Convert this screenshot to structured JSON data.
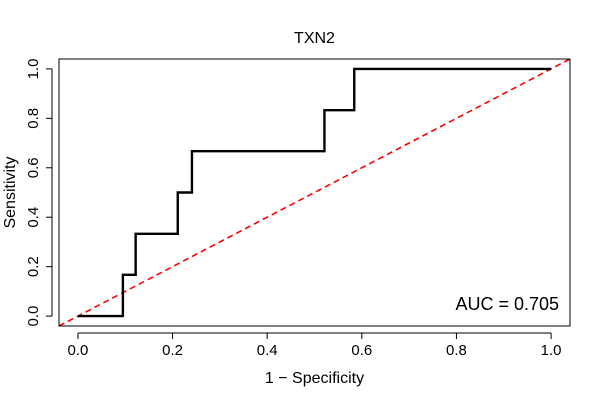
{
  "chart_data": {
    "type": "line",
    "title": "TXN2",
    "xlabel": "1 − Specificity",
    "ylabel": "Sensitivity",
    "xlim": [
      -0.04,
      1.04
    ],
    "ylim": [
      -0.04,
      1.04
    ],
    "x_ticks": [
      0.0,
      0.2,
      0.4,
      0.6,
      0.8,
      1.0
    ],
    "x_tick_labels": [
      "0.0",
      "0.2",
      "0.4",
      "0.6",
      "0.8",
      "1.0"
    ],
    "y_ticks": [
      0.0,
      0.2,
      0.4,
      0.6,
      0.8,
      1.0
    ],
    "y_tick_labels": [
      "0.0",
      "0.2",
      "0.4",
      "0.6",
      "0.8",
      "1.0"
    ],
    "grid": false,
    "annotation": "AUC = 0.705",
    "series": [
      {
        "color": "#000000",
        "style": "solid",
        "x": [
          0.0,
          0.095,
          0.095,
          0.122,
          0.122,
          0.211,
          0.211,
          0.241,
          0.241,
          0.521,
          0.521,
          0.584,
          0.584,
          1.0
        ],
        "y": [
          0.0,
          0.0,
          0.167,
          0.167,
          0.333,
          0.333,
          0.5,
          0.5,
          0.667,
          0.667,
          0.833,
          0.833,
          1.0,
          1.0
        ]
      },
      {
        "color": "#ff0000",
        "style": "dashed",
        "x": [
          -0.04,
          1.04
        ],
        "y": [
          -0.04,
          1.04
        ]
      }
    ]
  }
}
